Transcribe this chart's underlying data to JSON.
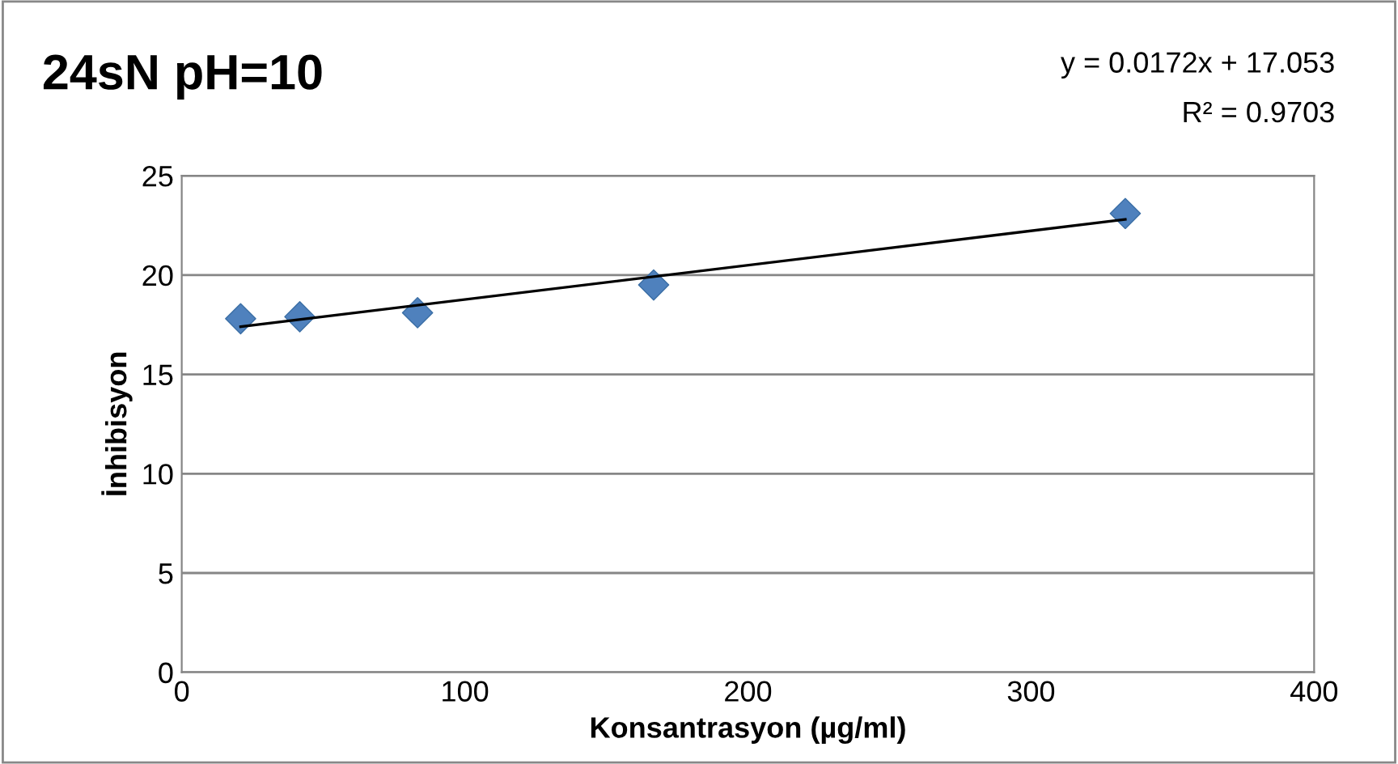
{
  "chart_data": {
    "type": "scatter",
    "title": "24sN pH=10",
    "xlabel": "Konsantrasyon (µg/ml)",
    "ylabel": "İnhibisyon",
    "annotations": [
      "y = 0.0172x + 17.053",
      "R² = 0.9703"
    ],
    "x": [
      20.8,
      41.7,
      83.3,
      166.7,
      333.3
    ],
    "series": [
      {
        "color": "#4f81bd",
        "values": [
          17.8,
          17.9,
          18.1,
          19.5,
          23.1
        ]
      },
      {
        "type": "line",
        "marker": "none",
        "color": "#000000",
        "x": [
          20.8,
          333.3
        ],
        "values": [
          17.4,
          22.8
        ]
      }
    ],
    "marker": "diamond",
    "xlim": [
      0,
      400
    ],
    "xticks": [
      0,
      100,
      200,
      300,
      400
    ],
    "ylim": [
      0,
      25
    ],
    "yticks": [
      0,
      5,
      10,
      15,
      20,
      25
    ],
    "grid": "y",
    "legend": false
  }
}
